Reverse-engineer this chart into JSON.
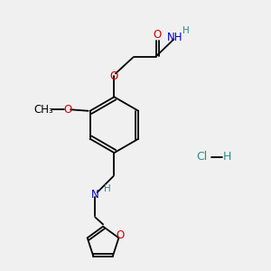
{
  "background_color": "#f0f0f0",
  "bond_color": "#000000",
  "atom_colors": {
    "O": "#cc0000",
    "N": "#0000cc",
    "H": "#2e8b8b",
    "Cl": "#2e8b8b"
  },
  "figsize": [
    3.0,
    3.0
  ],
  "dpi": 100,
  "lw": 1.3,
  "fs": 8.5,
  "fs_small": 7.5
}
